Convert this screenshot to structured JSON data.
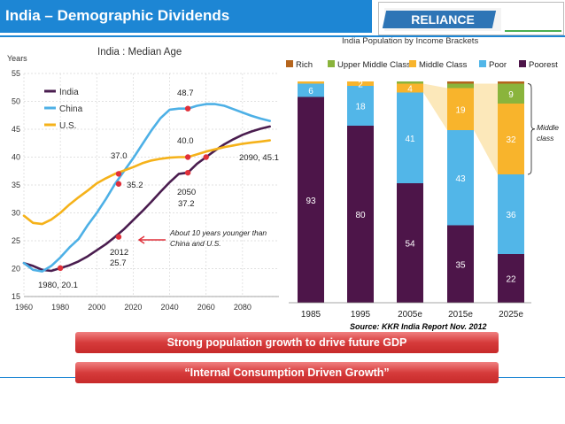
{
  "header": {
    "title": "India – Demographic Dividends"
  },
  "logo": {
    "text": "RELIANCE"
  },
  "source_text": "Source: KKR India Report Nov. 2012",
  "banners": {
    "growth": "Strong population growth to drive future GDP",
    "consumption": "“Internal Consumption Driven Growth”"
  },
  "chart_data": [
    {
      "type": "line",
      "title": "India : Median Age",
      "ylabel": "Years",
      "xlabel": "",
      "xlim": [
        1960,
        2100
      ],
      "ylim": [
        15,
        55
      ],
      "xticks": [
        "1960",
        "1980",
        "2000",
        "2020",
        "2040",
        "2060",
        "2080"
      ],
      "yticks": [
        "15",
        "20",
        "25",
        "30",
        "35",
        "40",
        "45",
        "50",
        "55"
      ],
      "grid": true,
      "legend_position": "top-left",
      "series": [
        {
          "name": "India",
          "color": "#4a1d4f",
          "x": [
            1960,
            1965,
            1970,
            1975,
            1980,
            1985,
            1990,
            1995,
            2000,
            2005,
            2010,
            2015,
            2020,
            2025,
            2030,
            2035,
            2040,
            2045,
            2050,
            2055,
            2060,
            2065,
            2070,
            2075,
            2080,
            2085,
            2090,
            2095
          ],
          "y": [
            21.0,
            20.5,
            19.8,
            19.6,
            20.1,
            20.6,
            21.3,
            22.2,
            23.3,
            24.4,
            25.7,
            27.1,
            28.7,
            30.3,
            32.0,
            33.8,
            35.5,
            37.0,
            37.2,
            38.8,
            40.0,
            41.2,
            42.3,
            43.2,
            44.0,
            44.6,
            45.1,
            45.5
          ]
        },
        {
          "name": "China",
          "color": "#4db0e6",
          "x": [
            1960,
            1965,
            1970,
            1975,
            1980,
            1985,
            1990,
            1995,
            2000,
            2005,
            2010,
            2015,
            2020,
            2025,
            2030,
            2035,
            2040,
            2045,
            2050,
            2055,
            2060,
            2065,
            2070,
            2075,
            2080,
            2085,
            2090,
            2095
          ],
          "y": [
            21.0,
            19.8,
            19.5,
            20.5,
            22.0,
            23.8,
            25.3,
            27.8,
            30.0,
            32.5,
            35.2,
            37.5,
            39.8,
            42.3,
            44.8,
            47.0,
            48.5,
            48.7,
            48.7,
            49.2,
            49.5,
            49.5,
            49.2,
            48.6,
            48.0,
            47.4,
            46.9,
            46.5
          ]
        },
        {
          "name": "U.S.",
          "color": "#f5b21a",
          "x": [
            1960,
            1965,
            1970,
            1975,
            1980,
            1985,
            1990,
            1995,
            2000,
            2005,
            2010,
            2015,
            2020,
            2025,
            2030,
            2035,
            2040,
            2045,
            2050,
            2055,
            2060,
            2065,
            2070,
            2075,
            2080,
            2085,
            2090,
            2095
          ],
          "y": [
            29.5,
            28.2,
            28.0,
            28.8,
            30.0,
            31.5,
            32.8,
            34.0,
            35.3,
            36.2,
            37.0,
            37.6,
            38.2,
            38.9,
            39.4,
            39.7,
            39.9,
            40.0,
            40.0,
            40.5,
            41.0,
            41.4,
            41.8,
            42.1,
            42.4,
            42.6,
            42.8,
            43.0
          ]
        }
      ],
      "markers": [
        {
          "x": 1980,
          "y": 20.1
        },
        {
          "x": 2012,
          "y": 25.7
        },
        {
          "x": 2050,
          "y": 37.2
        },
        {
          "x": 2012,
          "y": 35.2
        },
        {
          "x": 2012,
          "y": 37.0
        },
        {
          "x": 2050,
          "y": 48.7
        },
        {
          "x": 2050,
          "y": 40.0
        },
        {
          "x": 2060,
          "y": 40.0
        }
      ],
      "annotations": [
        "37.0",
        "35.2",
        "48.7",
        "40.0",
        "2050",
        "37.2",
        "2012",
        "25.7",
        "1980, 20.1",
        "2090, 45.1",
        "About 10 years younger than",
        "China and U.S."
      ]
    },
    {
      "type": "bar",
      "stacked": true,
      "title": "India Population by Income Brackets",
      "categories": [
        "1985",
        "1995",
        "2005e",
        "2015e",
        "2025e"
      ],
      "ylim": [
        0,
        100
      ],
      "legend_position": "top",
      "series": [
        {
          "name": "Poorest",
          "color": "#4d1549",
          "values": [
            93,
            80,
            54,
            35,
            22
          ]
        },
        {
          "name": "Poor",
          "color": "#52b6e8",
          "values": [
            6,
            18,
            41,
            43,
            36
          ]
        },
        {
          "name": "Middle Class",
          "color": "#f8b42c",
          "values": [
            1,
            2,
            4,
            19,
            32
          ]
        },
        {
          "name": "Upper Middle Class",
          "color": "#8ab43c",
          "values": [
            0,
            0,
            1,
            2,
            9
          ]
        },
        {
          "name": "Rich",
          "color": "#b5651d",
          "values": [
            0,
            0,
            0,
            1,
            1
          ]
        }
      ],
      "data_labels": [
        {
          "category": "1985",
          "series": "Poorest",
          "label": "93"
        },
        {
          "category": "1985",
          "series": "Poor",
          "label": "6"
        },
        {
          "category": "1995",
          "series": "Poorest",
          "label": "80"
        },
        {
          "category": "1995",
          "series": "Poor",
          "label": "18"
        },
        {
          "category": "1995",
          "series": "Middle Class",
          "label": "2"
        },
        {
          "category": "2005e",
          "series": "Poorest",
          "label": "54"
        },
        {
          "category": "2005e",
          "series": "Poor",
          "label": "41"
        },
        {
          "category": "2005e",
          "series": "Middle Class",
          "label": "4"
        },
        {
          "category": "2015e",
          "series": "Poorest",
          "label": "35"
        },
        {
          "category": "2015e",
          "series": "Poor",
          "label": "43"
        },
        {
          "category": "2015e",
          "series": "Middle Class",
          "label": "19"
        },
        {
          "category": "2025e",
          "series": "Poorest",
          "label": "22"
        },
        {
          "category": "2025e",
          "series": "Poor",
          "label": "36"
        },
        {
          "category": "2025e",
          "series": "Middle Class",
          "label": "32"
        },
        {
          "category": "2025e",
          "series": "Upper Middle Class",
          "label": "9"
        }
      ],
      "annotation": [
        "Middle",
        "class"
      ]
    }
  ]
}
